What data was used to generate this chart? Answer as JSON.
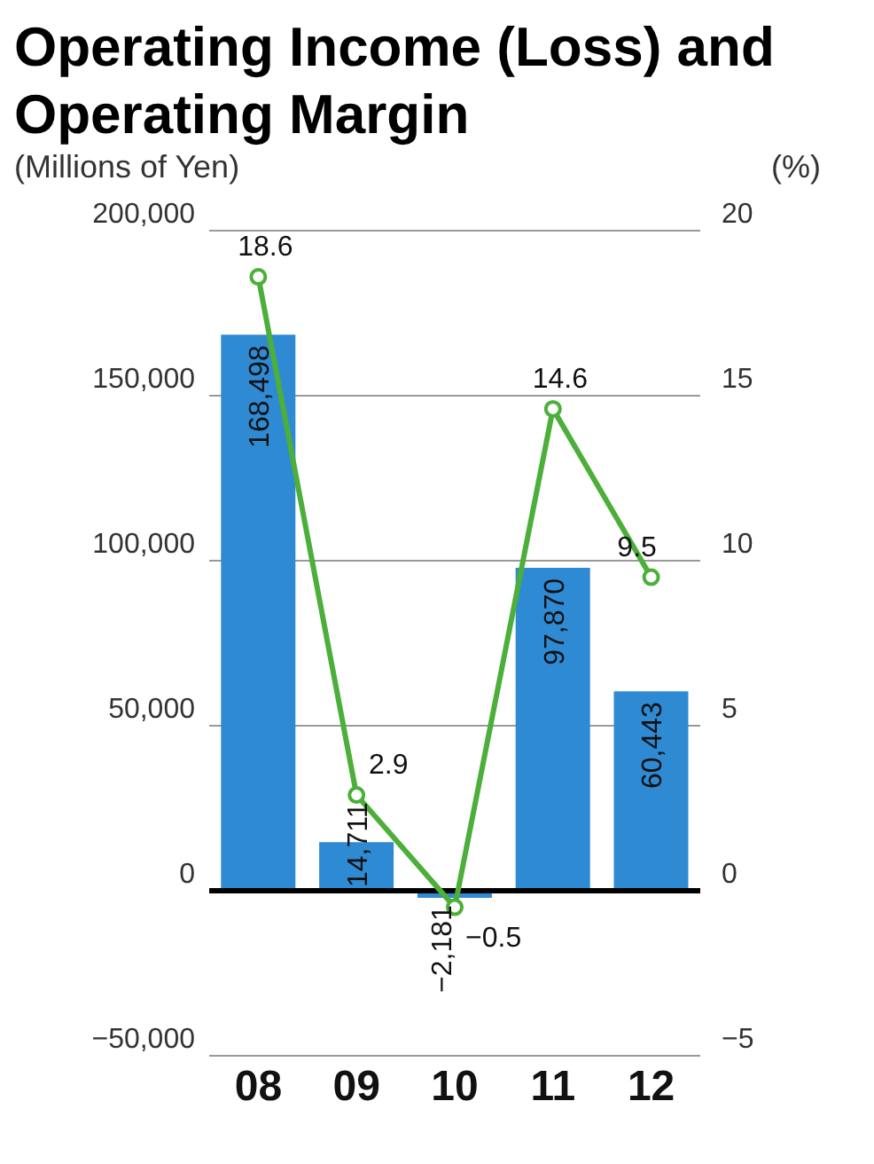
{
  "chart_data": {
    "type": "bar",
    "title": "Operating Income (Loss) and Operating Margin",
    "ylabel": "(Millions of Yen)",
    "y2label": "(%)",
    "categories": [
      "08",
      "09",
      "10",
      "11",
      "12"
    ],
    "series": [
      {
        "color": "#2f8ad4",
        "values": [
          168498,
          14711,
          -2181,
          97870,
          60443
        ],
        "value_labels": [
          "168,498",
          "14,711",
          "−2,181",
          "97,870",
          "60,443"
        ]
      },
      {
        "type": "line",
        "axis": "y2",
        "color": "#4caf3a",
        "values": [
          18.6,
          2.9,
          -0.5,
          14.6,
          9.5
        ],
        "value_labels": [
          "18.6",
          "2.9",
          "−0.5",
          "14.6",
          "9.5"
        ]
      }
    ],
    "ylim": [
      -50000,
      200000
    ],
    "yticks": [
      {
        "value": -50000,
        "label": "−50,000"
      },
      0,
      {
        "value": 50000,
        "label": "50,000"
      },
      {
        "value": 100000,
        "label": "100,000"
      },
      {
        "value": 150000,
        "label": "150,000"
      },
      {
        "value": 200000,
        "label": "200,000"
      }
    ],
    "y2lim": [
      -5,
      20
    ],
    "y2ticks": [
      {
        "value": -5,
        "label": "−5"
      },
      0,
      5,
      10,
      15,
      20
    ],
    "grid": "y",
    "marker": "circle"
  }
}
